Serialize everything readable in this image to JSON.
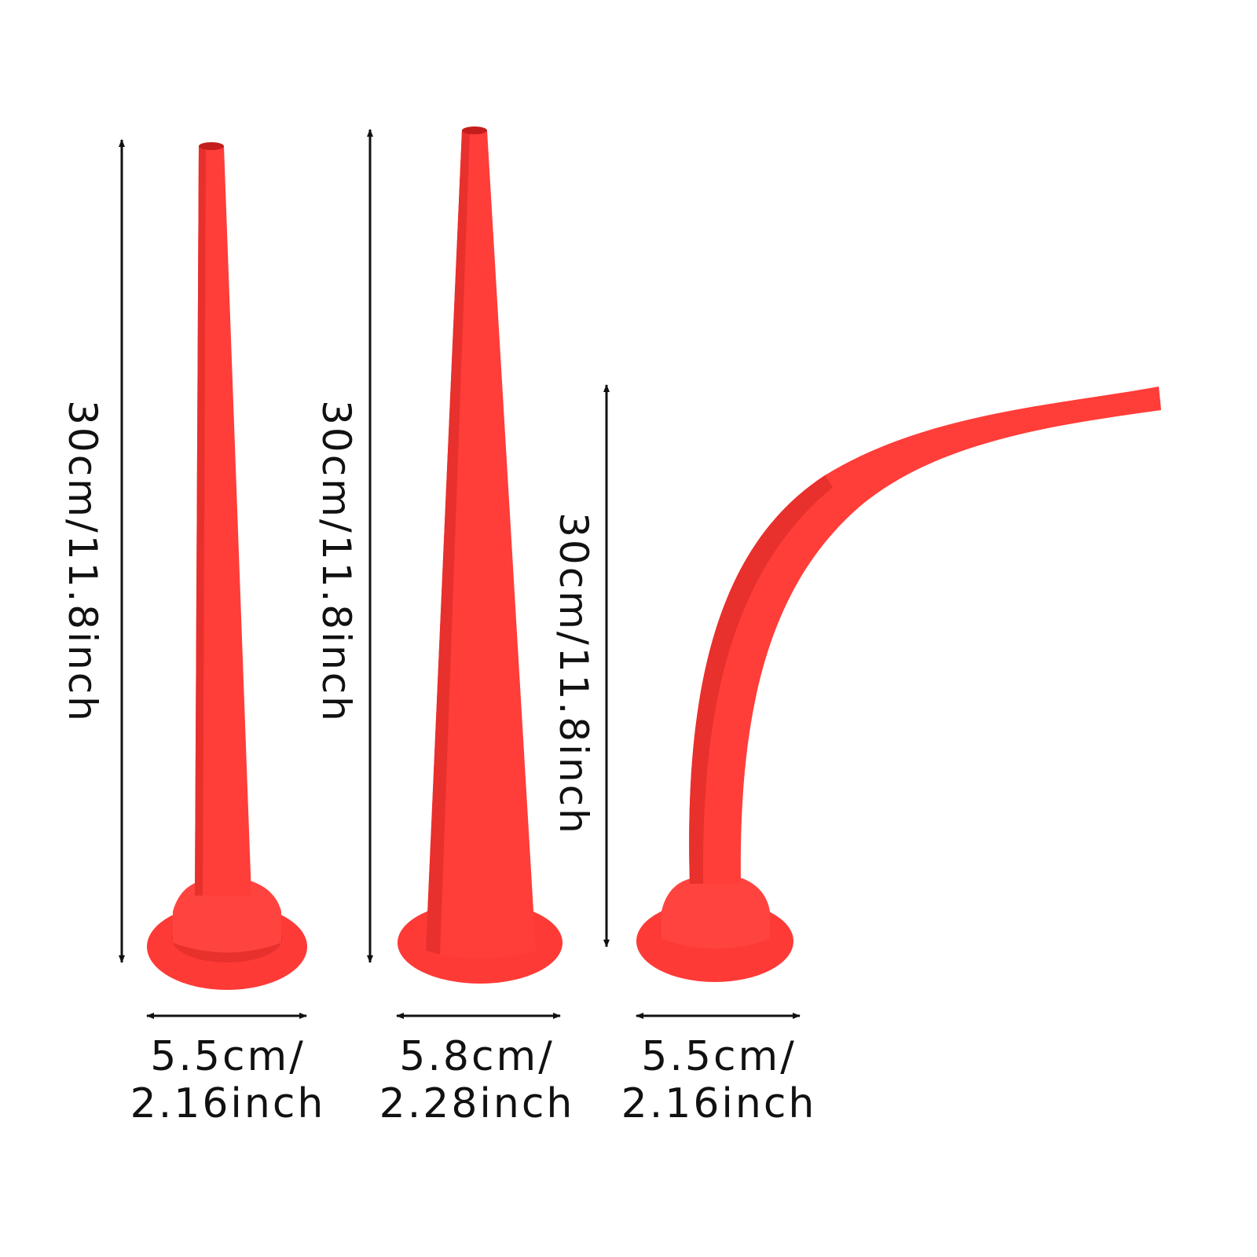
{
  "colors": {
    "nozzle": "#fd3a36",
    "nozzle_shade": "#e42a27",
    "arrow": "#111111"
  },
  "items": [
    {
      "height_label": "30cm/11.8inch",
      "width_line1": "5.5cm/",
      "width_line2": "2.16inch",
      "shape": "straight slim nozzle"
    },
    {
      "height_label": "30cm/11.8inch",
      "width_line1": "5.8cm/",
      "width_line2": "2.28inch",
      "shape": "straight wide nozzle"
    },
    {
      "height_label": "30cm/11.8inch",
      "width_line1": "5.5cm/",
      "width_line2": "2.16inch",
      "shape": "curved nozzle"
    }
  ]
}
